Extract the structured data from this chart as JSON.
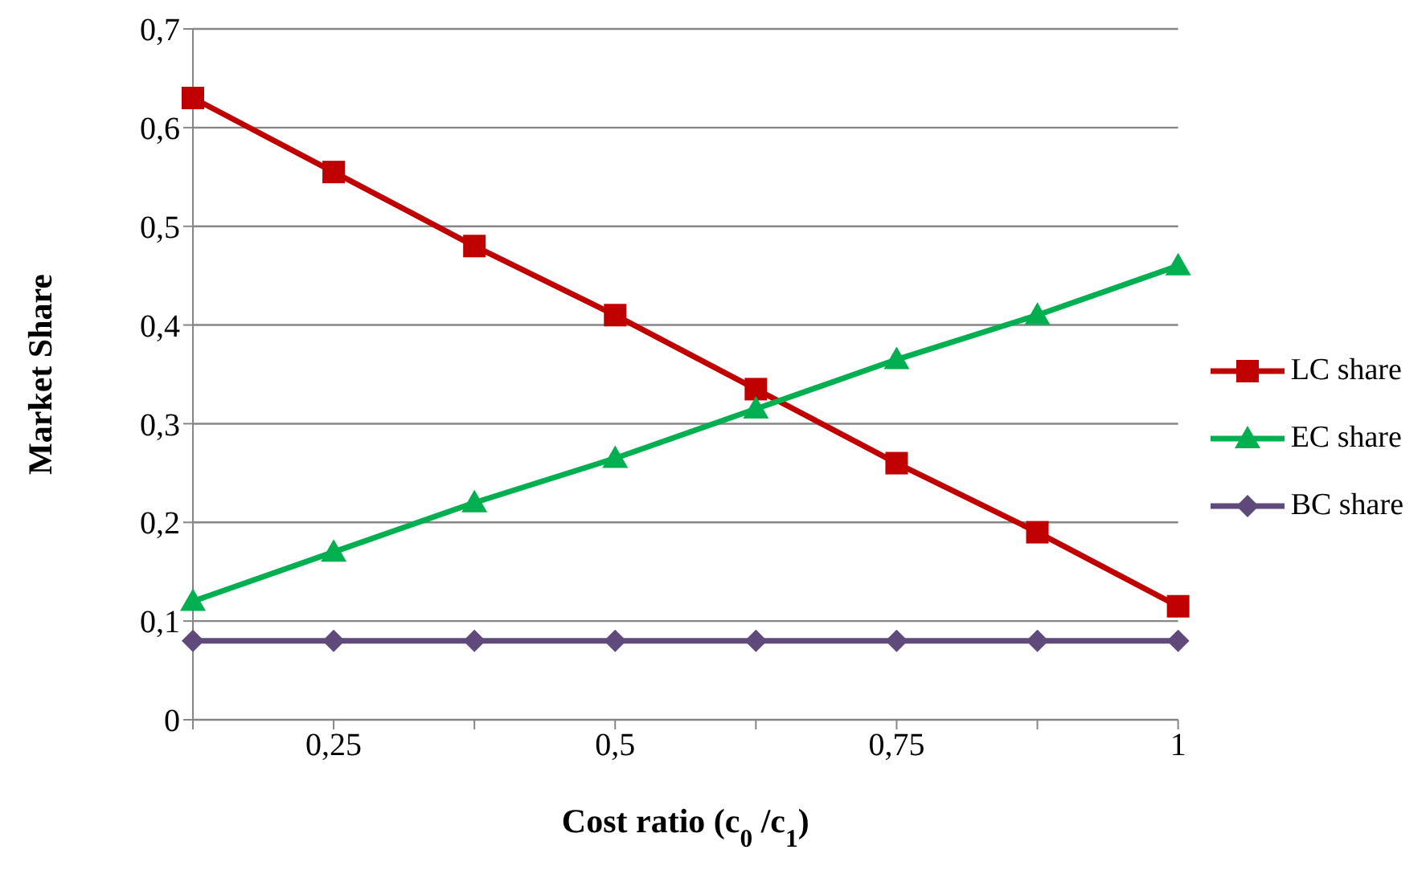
{
  "chart_data": {
    "type": "line",
    "xlabel": "Cost ratio (c$_{0}$ /c$_{1}$)",
    "ylabel": "Market Share",
    "categories": [
      null,
      "0,25",
      null,
      "0,5",
      null,
      "0,75",
      null,
      "1"
    ],
    "series": [
      {
        "name": "LC share",
        "color": "#c00000",
        "marker": "square",
        "values": [
          0.63,
          0.555,
          0.48,
          0.41,
          0.335,
          0.26,
          0.19,
          0.115
        ]
      },
      {
        "name": "EC share",
        "color": "#00b050",
        "marker": "triangle",
        "values": [
          0.12,
          0.17,
          0.22,
          0.265,
          0.315,
          0.365,
          0.41,
          0.46
        ]
      },
      {
        "name": "BC share",
        "color": "#604a7b",
        "marker": "diamond",
        "values": [
          0.08,
          0.08,
          0.08,
          0.08,
          0.08,
          0.08,
          0.08,
          0.08
        ]
      }
    ],
    "ylim": [
      0,
      0.7
    ],
    "yticks": [
      0,
      {
        "value": 0.1,
        "label": "0,1"
      },
      {
        "value": 0.2,
        "label": "0,2"
      },
      {
        "value": 0.3,
        "label": "0,3"
      },
      {
        "value": 0.4,
        "label": "0,4"
      },
      {
        "value": 0.5,
        "label": "0,5"
      },
      {
        "value": 0.6,
        "label": "0,6"
      },
      {
        "value": 0.7,
        "label": "0,7"
      }
    ],
    "grid": "y",
    "legend": "right",
    "line_style": "solid"
  }
}
